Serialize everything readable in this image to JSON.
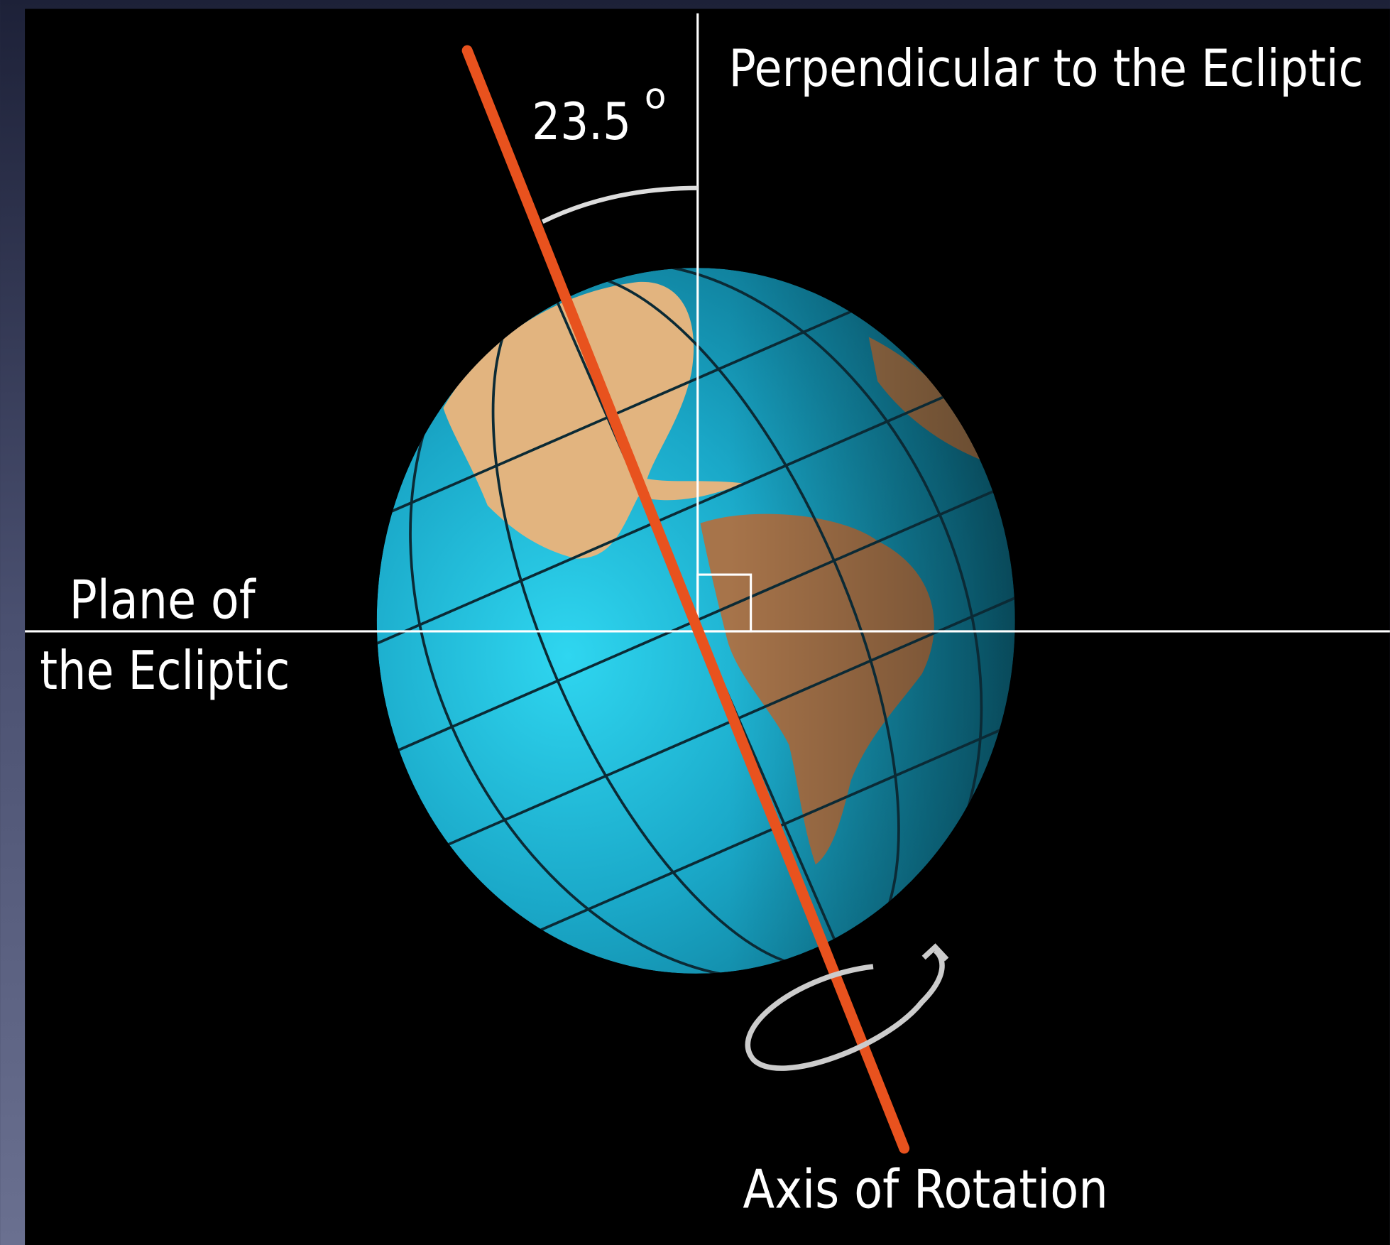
{
  "labels": {
    "perpendicular": "Perpendicular to the Ecliptic",
    "angle": "23.5",
    "angle_unit": "o",
    "plane_line1": "Plane of",
    "plane_line2": "the Ecliptic",
    "axis": "Axis of Rotation"
  }
}
